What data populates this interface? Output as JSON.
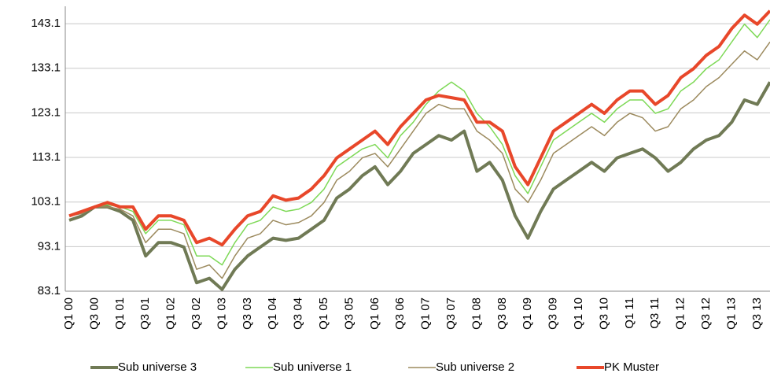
{
  "chart_data": {
    "type": "line",
    "categories": [
      "Q1 00",
      null,
      "Q3 00",
      null,
      "Q1 01",
      null,
      "Q3 01",
      null,
      "Q1 02",
      null,
      "Q3 02",
      null,
      "Q1 03",
      null,
      "Q3 03",
      null,
      "Q1 04",
      null,
      "Q3 04",
      null,
      "Q1 05",
      null,
      "Q3 05",
      null,
      "Q1 06",
      null,
      "Q3 06",
      null,
      "Q1 07",
      null,
      "Q3 07",
      null,
      "Q1 08",
      null,
      "Q3 08",
      null,
      "Q1 09",
      null,
      "Q3 09",
      null,
      "Q1 10",
      null,
      "Q3 10",
      null,
      "Q1 11",
      null,
      "Q3 11",
      null,
      "Q1 12",
      null,
      "Q3 12",
      null,
      "Q1 13",
      null,
      "Q3 13",
      null
    ],
    "series": [
      {
        "name": "Sub universe 3",
        "color": "#707a55",
        "line_width": 4,
        "values": [
          99,
          100,
          102,
          102,
          101,
          99,
          91,
          94,
          94,
          93,
          85,
          86,
          83.5,
          88,
          91,
          93,
          95,
          94.5,
          95,
          97,
          99,
          104,
          106,
          109,
          111,
          107,
          110,
          114,
          116,
          118,
          117,
          119,
          110,
          112,
          108,
          100,
          95,
          101,
          106,
          108,
          110,
          112,
          110,
          113,
          114,
          115,
          113,
          110,
          112,
          115,
          117,
          118,
          121,
          126,
          125,
          130
        ]
      },
      {
        "name": "Sub universe 1",
        "color": "#7ed957",
        "line_width": 1.5,
        "values": [
          100,
          101,
          102,
          102.5,
          102,
          101,
          96,
          99,
          99,
          98,
          91,
          91,
          89,
          94,
          98,
          99,
          102,
          101,
          101.5,
          103,
          106,
          111,
          113,
          115,
          116,
          113,
          118,
          121,
          125,
          128,
          130,
          128,
          123,
          120,
          116,
          109,
          105,
          111,
          117,
          119,
          121,
          123,
          121,
          124,
          126,
          126,
          123,
          124,
          128,
          130,
          133,
          135,
          139,
          143,
          140,
          144
        ]
      },
      {
        "name": "Sub universe 2",
        "color": "#9c8a5e",
        "line_width": 1.5,
        "values": [
          100,
          100.5,
          102,
          102,
          101.5,
          100,
          94,
          97,
          97,
          96,
          88,
          89,
          86,
          91,
          95,
          96,
          99,
          98,
          98.5,
          100,
          103,
          108,
          110,
          113,
          114,
          111,
          115,
          119,
          123,
          125,
          124,
          124,
          119,
          117,
          114,
          106,
          103,
          108,
          114,
          116,
          118,
          120,
          118,
          121,
          123,
          122,
          119,
          120,
          124,
          126,
          129,
          131,
          134,
          137,
          135,
          139
        ]
      },
      {
        "name": "PK Muster",
        "color": "#e8472a",
        "line_width": 4,
        "values": [
          100,
          101,
          102,
          103,
          102,
          102,
          97,
          100,
          100,
          99,
          94,
          95,
          93.5,
          97,
          100,
          101,
          104.5,
          103.5,
          104,
          106,
          109,
          113,
          115,
          117,
          119,
          116,
          120,
          123,
          126,
          127,
          126.5,
          126,
          121,
          121,
          119,
          111,
          107,
          113,
          119,
          121,
          123,
          125,
          123,
          126,
          128,
          128,
          125,
          127,
          131,
          133,
          136,
          138,
          142,
          145,
          143,
          146
        ]
      }
    ],
    "ylim": [
      83.1,
      147
    ],
    "yticks": [
      83.1,
      93.1,
      103.1,
      113.1,
      123.1,
      133.1,
      143.1
    ],
    "grid": true
  }
}
